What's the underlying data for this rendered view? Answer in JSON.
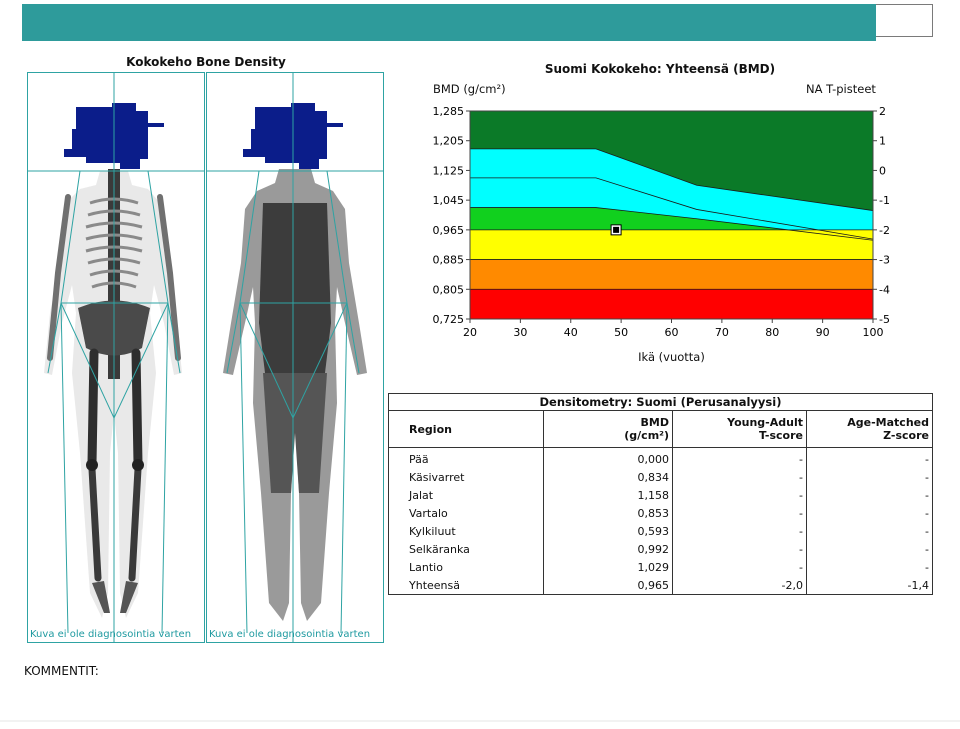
{
  "scan": {
    "title": "Kokokeho Bone Density",
    "left_note": "Kuva ei ole diagnosointia varten",
    "right_note": "Kuva ei ole diagnosointia varten"
  },
  "chart_data": {
    "type": "area",
    "title": "Suomi Kokokeho: Yhteensä (BMD)",
    "ylabel": "BMD (g/cm²)",
    "y2label": "NA T-pisteet",
    "xlabel": "Ikä (vuotta)",
    "x_ticks": [
      20,
      30,
      40,
      50,
      60,
      70,
      80,
      90,
      100
    ],
    "y_ticks": [
      "1,285",
      "1,205",
      "1,125",
      "1,045",
      "0,965",
      "0,885",
      "0,805",
      "0,725"
    ],
    "y2_ticks": [
      "2",
      "1",
      "0",
      "-1",
      "-2",
      "-3",
      "-4",
      "-5"
    ],
    "xlim": [
      20,
      100
    ],
    "ylim": [
      0.725,
      1.285
    ],
    "colors": {
      "top_band": "#0b7a28",
      "cyan_band": "#00ffff",
      "green_band": "#11d01e",
      "yellow_band": "#ffff00",
      "orange_band": "#ff8a00",
      "red_band": "#ff0000"
    },
    "band_boundaries": [
      {
        "name": "cyan-upper",
        "x": [
          20,
          45,
          65,
          100
        ],
        "y": [
          1.183,
          1.183,
          1.085,
          1.017
        ]
      },
      {
        "name": "cyan-mid",
        "x": [
          20,
          45,
          65,
          100
        ],
        "y": [
          1.105,
          1.105,
          1.02,
          0.94
        ]
      },
      {
        "name": "cyan-lower",
        "x": [
          20,
          45,
          65,
          100
        ],
        "y": [
          1.025,
          1.025,
          0.995,
          0.937
        ]
      },
      {
        "name": "green-lower",
        "x": [
          20,
          45,
          51,
          100
        ],
        "y": [
          0.965,
          0.965,
          0.965,
          0.965
        ]
      },
      {
        "name": "yellow-lower",
        "x": [
          20,
          100
        ],
        "y": [
          0.885,
          0.885
        ]
      },
      {
        "name": "orange-lower",
        "x": [
          20,
          100
        ],
        "y": [
          0.805,
          0.805
        ]
      }
    ],
    "point": {
      "x": 49,
      "y": 0.965
    }
  },
  "table": {
    "title": "Densitometry: Suomi (Perusanalyysi)",
    "col_region": "Region",
    "col_bmd": "BMD",
    "col_bmd_unit": "(g/cm²)",
    "col_t": "Young-Adult",
    "col_t2": "T-score",
    "col_z": "Age-Matched",
    "col_z2": "Z-score",
    "rows": [
      {
        "region": "Pää",
        "bmd": "0,000",
        "t": "-",
        "z": "-"
      },
      {
        "region": "Käsivarret",
        "bmd": "0,834",
        "t": "-",
        "z": "-"
      },
      {
        "region": "Jalat",
        "bmd": "1,158",
        "t": "-",
        "z": "-"
      },
      {
        "region": "Vartalo",
        "bmd": "0,853",
        "t": "-",
        "z": "-"
      },
      {
        "region": "Kylkiluut",
        "bmd": "0,593",
        "t": "-",
        "z": "-"
      },
      {
        "region": "Selkäranka",
        "bmd": "0,992",
        "t": "-",
        "z": "-"
      },
      {
        "region": "Lantio",
        "bmd": "1,029",
        "t": "-",
        "z": "-"
      },
      {
        "region": "Yhteensä",
        "bmd": "0,965",
        "t": "-2,0",
        "z": "-1,4"
      }
    ]
  },
  "comments": {
    "label": "KOMMENTIT:"
  }
}
